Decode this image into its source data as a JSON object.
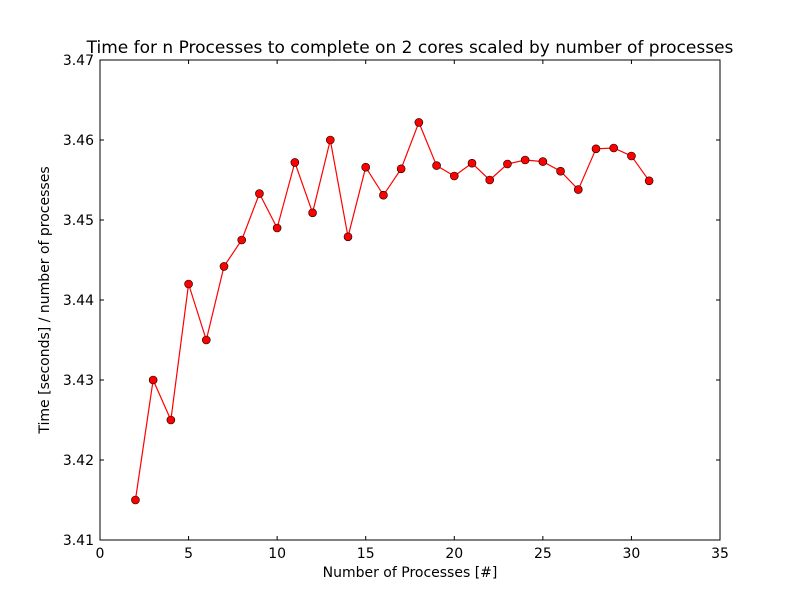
{
  "chart_data": {
    "type": "line",
    "title": "Time for n Processes to complete on 2 cores scaled by number of processes",
    "xlabel": "Number of Processes [#]",
    "ylabel": "Time [seconds] / number of processes",
    "xlim": [
      0,
      35
    ],
    "ylim": [
      3.41,
      3.47
    ],
    "xticks": [
      0,
      5,
      10,
      15,
      20,
      25,
      30,
      35
    ],
    "yticks": [
      3.41,
      3.42,
      3.43,
      3.44,
      3.45,
      3.46,
      3.47
    ],
    "xtick_labels": [
      "0",
      "5",
      "10",
      "15",
      "20",
      "25",
      "30",
      "35"
    ],
    "ytick_labels": [
      "3.41",
      "3.42",
      "3.43",
      "3.44",
      "3.45",
      "3.46",
      "3.47"
    ],
    "grid": false,
    "series": [
      {
        "color": "#ff0000",
        "marker": "circle",
        "x": [
          2,
          3,
          4,
          5,
          6,
          7,
          8,
          9,
          10,
          11,
          12,
          13,
          14,
          15,
          16,
          17,
          18,
          19,
          20,
          21,
          22,
          23,
          24,
          25,
          26,
          27,
          28,
          29,
          30,
          31
        ],
        "y": [
          3.415,
          3.43,
          3.425,
          3.442,
          3.435,
          3.4442,
          3.4475,
          3.4533,
          3.449,
          3.4572,
          3.4509,
          3.46,
          3.4479,
          3.4566,
          3.4531,
          3.4564,
          3.4622,
          3.4568,
          3.4555,
          3.4571,
          3.455,
          3.457,
          3.4575,
          3.4573,
          3.4561,
          3.4538,
          3.4589,
          3.459,
          3.458,
          3.4549
        ]
      }
    ]
  }
}
